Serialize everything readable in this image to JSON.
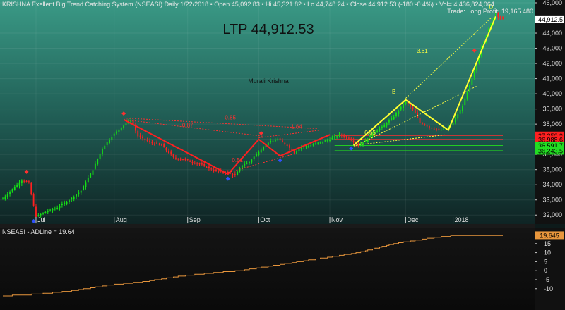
{
  "header": {
    "text": "KRISHNA Exellent Big Trend Catching System (NSEASI) Daily  1/22/2018  •  Open 45,092.83  •  Hi 45,321.82  •  Lo 44,748.24  •  Close 44,912.53 (-180 -0.4%)  •  Vol= 4,436,824,064",
    "trade": "Trade: Long Profit: 19,165.480"
  },
  "ltp_label": "LTP 44,912.53",
  "author_label": "Murali Krishna",
  "indicator_header": "NSEASI - ADLine = 19.64",
  "chart_data": [
    {
      "type": "candlestick",
      "ylim": [
        31500,
        46000
      ],
      "yticks": [
        "32,000",
        "33,000",
        "34,000",
        "35,000",
        "36,000",
        "37,000",
        "38,000",
        "39,000",
        "40,000",
        "41,000",
        "42,000",
        "43,000",
        "44,000",
        "45,000",
        "46,000"
      ],
      "ytick_values": [
        32000,
        33000,
        34000,
        35000,
        36000,
        37000,
        38000,
        39000,
        40000,
        41000,
        42000,
        43000,
        44000,
        45000,
        46000
      ],
      "months": [
        "Jul",
        "Aug",
        "Sep",
        "Oct",
        "Nov",
        "Dec",
        "2018"
      ],
      "month_bar_index": [
        14,
        47,
        78,
        108,
        138,
        170,
        190
      ],
      "bar_count": 212,
      "close_anchors": [
        [
          0,
          33100
        ],
        [
          4,
          33700
        ],
        [
          8,
          34300
        ],
        [
          11,
          34100
        ],
        [
          13,
          32600
        ],
        [
          14,
          31900
        ],
        [
          18,
          32200
        ],
        [
          23,
          32500
        ],
        [
          28,
          33000
        ],
        [
          33,
          33600
        ],
        [
          38,
          35000
        ],
        [
          42,
          36400
        ],
        [
          46,
          37200
        ],
        [
          50,
          37800
        ],
        [
          54,
          38300
        ],
        [
          57,
          37200
        ],
        [
          62,
          36800
        ],
        [
          67,
          36600
        ],
        [
          72,
          35800
        ],
        [
          78,
          35600
        ],
        [
          84,
          35300
        ],
        [
          90,
          34900
        ],
        [
          95,
          34800
        ],
        [
          98,
          34600
        ],
        [
          101,
          35300
        ],
        [
          104,
          35500
        ],
        [
          108,
          36200
        ],
        [
          112,
          36800
        ],
        [
          116,
          37000
        ],
        [
          120,
          36600
        ],
        [
          123,
          36100
        ],
        [
          126,
          36500
        ],
        [
          130,
          36600
        ],
        [
          134,
          36800
        ],
        [
          138,
          37000
        ],
        [
          142,
          37300
        ],
        [
          146,
          37100
        ],
        [
          150,
          36600
        ],
        [
          153,
          36900
        ],
        [
          156,
          37400
        ],
        [
          160,
          37800
        ],
        [
          165,
          38500
        ],
        [
          170,
          39500
        ],
        [
          173,
          39000
        ],
        [
          176,
          38100
        ],
        [
          180,
          37800
        ],
        [
          184,
          37600
        ],
        [
          187,
          37700
        ],
        [
          190,
          38100
        ],
        [
          194,
          39200
        ],
        [
          198,
          41000
        ],
        [
          202,
          43100
        ],
        [
          206,
          44600
        ],
        [
          208,
          45400
        ],
        [
          209,
          45100
        ],
        [
          211,
          44912
        ]
      ],
      "last_close": 44912.53,
      "price_labels": [
        {
          "value": 44912.53,
          "text": "44,912.5",
          "bg": "#ffffff",
          "fg": "#000000"
        },
        {
          "value": 37250.9,
          "text": "37,250.9",
          "bg": "#ff2020",
          "fg": "#000000"
        },
        {
          "value": 36988.6,
          "text": "36,988.6",
          "bg": "#ff2020",
          "fg": "#000000"
        },
        {
          "value": 36591.7,
          "text": "36,591.7",
          "bg": "#22dd22",
          "fg": "#000000"
        },
        {
          "value": 36243.5,
          "text": "36,243.5",
          "bg": "#22dd22",
          "fg": "#000000"
        }
      ],
      "h_levels": [
        {
          "value": 37250.9,
          "color": "#ff3030"
        },
        {
          "value": 36988.6,
          "color": "#ff3030"
        },
        {
          "value": 36591.7,
          "color": "#22cc22"
        },
        {
          "value": 36243.5,
          "color": "#22cc22"
        }
      ],
      "red_zigzag": [
        [
          51,
          38300
        ],
        [
          95,
          34700
        ],
        [
          108,
          37000
        ],
        [
          117,
          35900
        ],
        [
          138,
          37300
        ]
      ],
      "yellow_zigzag": [
        [
          148,
          36600
        ],
        [
          170,
          39600
        ],
        [
          188,
          37600
        ],
        [
          208,
          45100
        ]
      ],
      "red_dotted": [
        [
          [
            51,
            38400
          ],
          [
            133,
            37700
          ]
        ],
        [
          [
            51,
            38300
          ],
          [
            110,
            37200
          ]
        ],
        [
          [
            95,
            34800
          ],
          [
            122,
            36000
          ]
        ],
        [
          [
            108,
            37100
          ],
          [
            134,
            37600
          ]
        ]
      ],
      "yellow_dotted": [
        [
          [
            148,
            36600
          ],
          [
            187,
            37300
          ]
        ],
        [
          [
            170,
            39700
          ],
          [
            206,
            45000
          ]
        ],
        [
          [
            148,
            36500
          ],
          [
            200,
            40500
          ]
        ]
      ],
      "annotations": [
        {
          "text": "0.85",
          "bar": 96,
          "price": 38300,
          "color": "#ff3030"
        },
        {
          "text": "0.87",
          "bar": 78,
          "price": 37800,
          "color": "#ff3030"
        },
        {
          "text": "1.64",
          "bar": 124,
          "price": 37700,
          "color": "#ff3030"
        },
        {
          "text": "0.51",
          "bar": 99,
          "price": 35500,
          "color": "#ff3030"
        },
        {
          "text": "0.65",
          "bar": 155,
          "price": 37300,
          "color": "#ffff40"
        },
        {
          "text": "3.61",
          "bar": 177,
          "price": 42700,
          "color": "#ffff40"
        },
        {
          "text": "B",
          "bar": 165,
          "price": 40000,
          "color": "#ffff40"
        },
        {
          "text": "D",
          "bar": 206,
          "price": 45600,
          "color": "#ffff40"
        }
      ],
      "blue_markers": [
        [
          13,
          31600
        ],
        [
          95,
          34400
        ],
        [
          117,
          35600
        ],
        [
          147,
          36400
        ]
      ],
      "red_markers": [
        [
          10,
          34850
        ],
        [
          51,
          38700
        ],
        [
          109,
          37400
        ],
        [
          199,
          42850
        ]
      ]
    },
    {
      "type": "line",
      "name": "NSEASI - ADLine",
      "last_value": 19.64,
      "last_label": "19.645",
      "ylim": [
        -14,
        20
      ],
      "yticks": [
        -10,
        -5,
        0,
        5,
        10,
        15
      ],
      "anchors": [
        [
          0,
          -14
        ],
        [
          15,
          -13
        ],
        [
          30,
          -11
        ],
        [
          45,
          -8
        ],
        [
          60,
          -6
        ],
        [
          75,
          -3
        ],
        [
          90,
          -1
        ],
        [
          100,
          0
        ],
        [
          110,
          2
        ],
        [
          125,
          5
        ],
        [
          135,
          7
        ],
        [
          150,
          10
        ],
        [
          165,
          15
        ],
        [
          180,
          18
        ],
        [
          190,
          19.5
        ],
        [
          211,
          19.64
        ]
      ]
    }
  ]
}
